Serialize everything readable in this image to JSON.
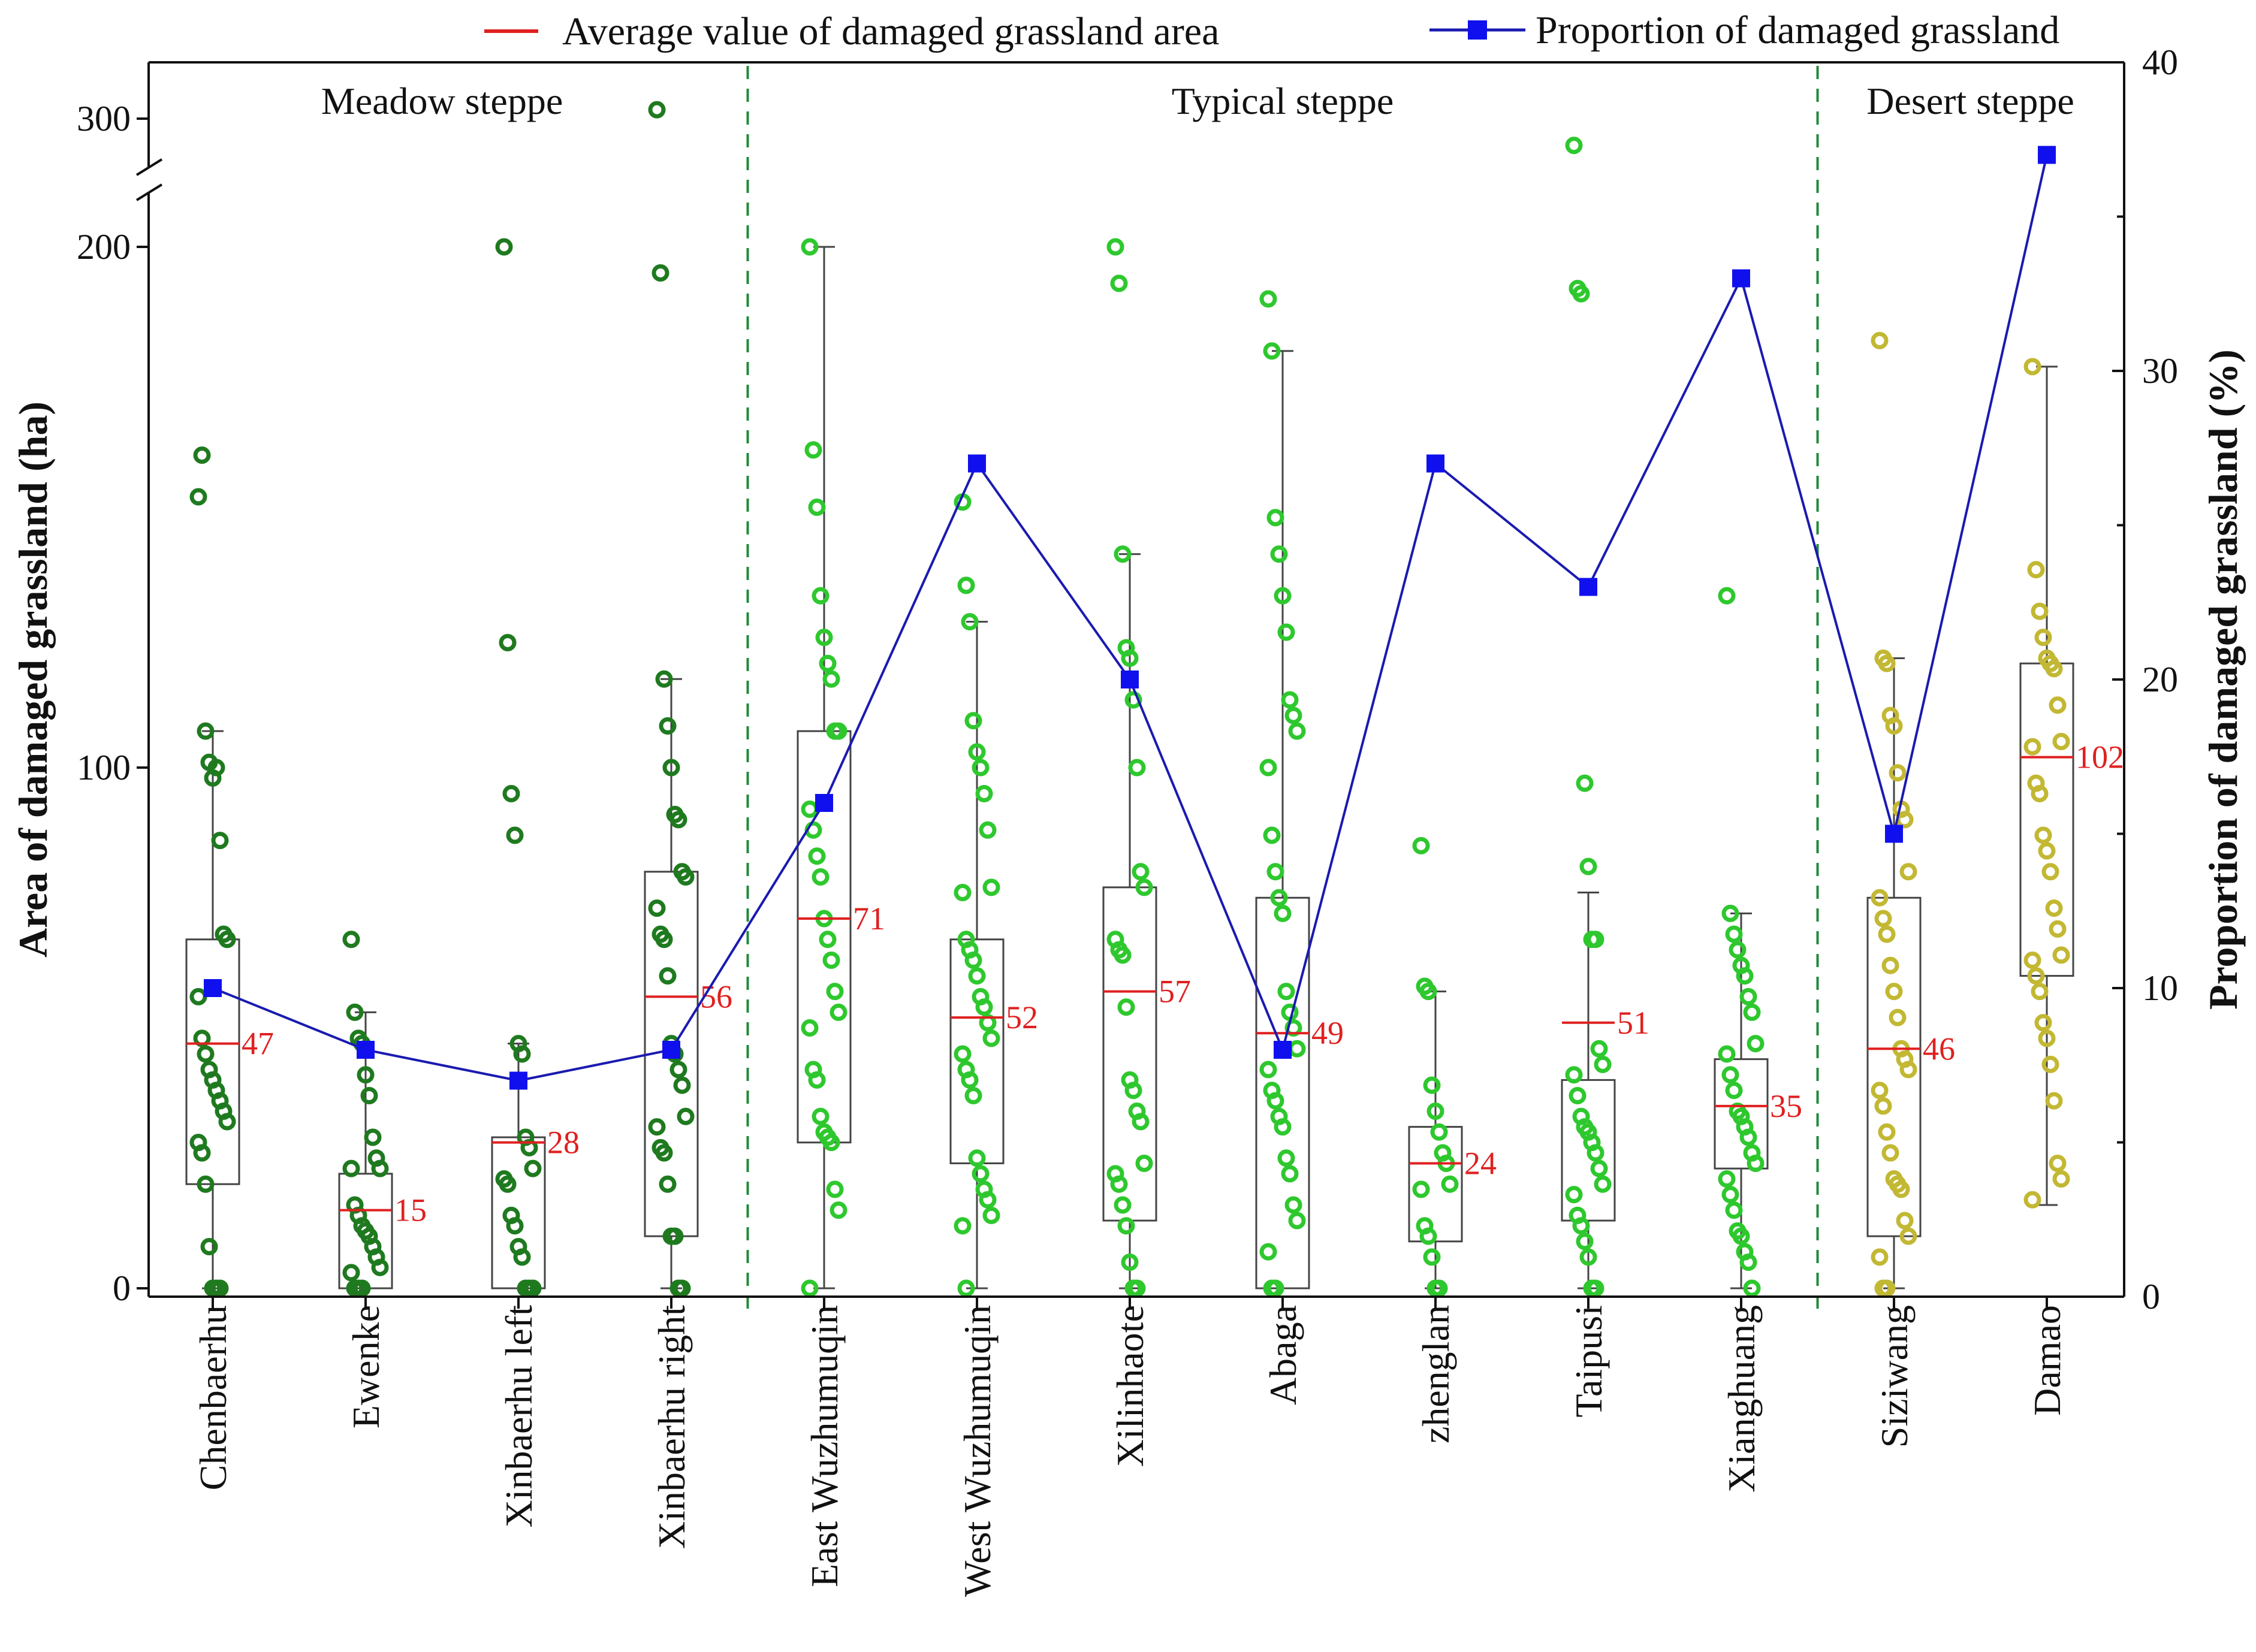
{
  "chart_data": {
    "type": "box-scatter-line",
    "legend": {
      "mean_label": "Average value of damaged grassland area",
      "proportion_label": "Proportion of damaged grassland",
      "placement": "top"
    },
    "regions": [
      {
        "label": "Meadow steppe",
        "first_category": 0,
        "last_category": 3
      },
      {
        "label": "Typical steppe",
        "first_category": 4,
        "last_category": 10
      },
      {
        "label": "Desert steppe",
        "first_category": 11,
        "last_category": 12
      }
    ],
    "y_left": {
      "label": "Area  of damaged grassland (ha)",
      "lower_range": [
        0,
        200
      ],
      "upper_range": [
        200,
        300
      ],
      "lower_ticks": [
        "0",
        "100",
        "200"
      ],
      "upper_ticks": [
        "300"
      ],
      "axis_break": true
    },
    "y_right": {
      "label": "Proportion of damaged grassland (%)",
      "range": [
        0,
        40
      ],
      "ticks": [
        "0",
        "10",
        "20",
        "30",
        "40"
      ]
    },
    "colors": {
      "meadow": "#1f7a1f",
      "typical": "#2ec82e",
      "desert": "#c2b833",
      "mean": "#e02020",
      "proportion": "#1a1ab0",
      "proportion_marker": "#1010ee",
      "divider": "#1f8a3a",
      "box": "#444444",
      "axis": "#111111"
    },
    "categories": [
      {
        "name": "Chenbaerhu",
        "group": "meadow",
        "mean": 47,
        "mean_label": "47",
        "proportion": 10,
        "box": {
          "q1": 20,
          "q3": 67,
          "whisker_low": 0,
          "whisker_high": 107
        },
        "points": [
          152,
          160,
          107,
          101,
          98,
          100,
          86,
          68,
          67,
          56,
          48,
          45,
          42,
          40,
          38,
          36,
          34,
          32,
          28,
          26,
          20,
          8,
          0,
          0,
          0
        ]
      },
      {
        "name": "Ewenke",
        "group": "meadow",
        "mean": 15,
        "mean_label": "15",
        "proportion": 8,
        "box": {
          "q1": 0,
          "q3": 22,
          "whisker_low": 0,
          "whisker_high": 53
        },
        "points": [
          67,
          53,
          48,
          47,
          41,
          37,
          29,
          25,
          23,
          23,
          16,
          14,
          12,
          11,
          10,
          8,
          6,
          4,
          3,
          0,
          0,
          0
        ]
      },
      {
        "name": "Xinbaerhu left",
        "group": "meadow",
        "mean": 28,
        "mean_label": "28",
        "proportion": 7,
        "box": {
          "q1": 0,
          "q3": 29,
          "whisker_low": 0,
          "whisker_high": 47
        },
        "points": [
          200,
          124,
          95,
          87,
          47,
          45,
          29,
          27,
          23,
          21,
          20,
          14,
          12,
          8,
          6,
          0,
          0,
          0
        ]
      },
      {
        "name": "Xinbaerhu right",
        "group": "meadow",
        "mean": 56,
        "mean_label": "56",
        "proportion": 8,
        "box": {
          "q1": 10,
          "q3": 80,
          "whisker_low": 0,
          "whisker_high": 117
        },
        "points": [
          312,
          195,
          117,
          108,
          100,
          91,
          90,
          80,
          79,
          73,
          68,
          67,
          60,
          47,
          45,
          42,
          39,
          33,
          31,
          27,
          26,
          20,
          10,
          10,
          0,
          0
        ]
      },
      {
        "name": "East Wuzhumuqin",
        "group": "typical",
        "mean": 71,
        "mean_label": "71",
        "proportion": 16,
        "box": {
          "q1": 28,
          "q3": 107,
          "whisker_low": 0,
          "whisker_high": 200
        },
        "points": [
          200,
          161,
          150,
          133,
          125,
          120,
          117,
          107,
          107,
          92,
          88,
          83,
          79,
          71,
          67,
          63,
          57,
          53,
          50,
          42,
          40,
          33,
          30,
          29,
          28,
          19,
          15,
          0
        ]
      },
      {
        "name": "West Wuzhumuqin",
        "group": "typical",
        "mean": 52,
        "mean_label": "52",
        "proportion": 27,
        "box": {
          "q1": 24,
          "q3": 67,
          "whisker_low": 0,
          "whisker_high": 128
        },
        "points": [
          151,
          135,
          128,
          109,
          103,
          100,
          95,
          88,
          77,
          76,
          67,
          65,
          63,
          60,
          56,
          54,
          51,
          48,
          45,
          42,
          40,
          37,
          25,
          22,
          19,
          17,
          14,
          12,
          0
        ]
      },
      {
        "name": "Xilinhaote",
        "group": "typical",
        "mean": 57,
        "mean_label": "57",
        "proportion": 20,
        "box": {
          "q1": 13,
          "q3": 77,
          "whisker_low": 0,
          "whisker_high": 141
        },
        "points": [
          200,
          193,
          141,
          123,
          121,
          113,
          100,
          80,
          77,
          67,
          65,
          64,
          54,
          40,
          38,
          34,
          32,
          24,
          22,
          20,
          16,
          12,
          5,
          0,
          0
        ]
      },
      {
        "name": "Abaga",
        "group": "typical",
        "mean": 49,
        "mean_label": "49",
        "proportion": 8,
        "box": {
          "q1": 0,
          "q3": 75,
          "whisker_low": 0,
          "whisker_high": 180
        },
        "points": [
          190,
          180,
          148,
          141,
          133,
          126,
          113,
          110,
          107,
          100,
          87,
          80,
          75,
          72,
          57,
          53,
          50,
          46,
          42,
          38,
          36,
          33,
          31,
          25,
          22,
          16,
          13,
          7,
          0,
          0
        ]
      },
      {
        "name": "zhenglan",
        "group": "typical",
        "mean": 24,
        "mean_label": "24",
        "proportion": 27,
        "box": {
          "q1": 9,
          "q3": 31,
          "whisker_low": 0,
          "whisker_high": 57
        },
        "points": [
          85,
          58,
          57,
          39,
          34,
          30,
          26,
          24,
          20,
          19,
          12,
          10,
          6,
          0,
          0
        ]
      },
      {
        "name": "Taipusi",
        "group": "typical",
        "mean": 51,
        "mean_label": "51",
        "proportion": 23,
        "box": {
          "q1": 13,
          "q3": 40,
          "whisker_low": 0,
          "whisker_high": 76
        },
        "points": [
          264,
          192,
          191,
          97,
          81,
          67,
          67,
          46,
          43,
          41,
          37,
          33,
          31,
          30,
          28,
          26,
          23,
          20,
          18,
          14,
          12,
          9,
          6,
          0,
          0
        ]
      },
      {
        "name": "Xianghuang",
        "group": "typical",
        "mean": 35,
        "mean_label": "35",
        "proportion": 33,
        "box": {
          "q1": 23,
          "q3": 44,
          "whisker_low": 0,
          "whisker_high": 72
        },
        "points": [
          133,
          72,
          68,
          65,
          62,
          60,
          56,
          53,
          47,
          45,
          41,
          38,
          34,
          33,
          31,
          29,
          26,
          24,
          21,
          18,
          15,
          11,
          10,
          7,
          5,
          0
        ]
      },
      {
        "name": "Siziwang",
        "group": "desert",
        "mean": 46,
        "mean_label": "46",
        "proportion": 15,
        "box": {
          "q1": 10,
          "q3": 75,
          "whisker_low": 0,
          "whisker_high": 121
        },
        "points": [
          182,
          121,
          120,
          110,
          108,
          99,
          92,
          90,
          80,
          75,
          71,
          68,
          62,
          57,
          52,
          46,
          44,
          42,
          38,
          35,
          30,
          26,
          21,
          20,
          19,
          13,
          10,
          6,
          0,
          0
        ]
      },
      {
        "name": "Damao",
        "group": "desert",
        "mean": 102,
        "mean_label": "102",
        "proportion": 37,
        "box": {
          "q1": 60,
          "q3": 120,
          "whisker_low": 16,
          "whisker_high": 177
        },
        "points": [
          177,
          138,
          130,
          125,
          121,
          120,
          119,
          112,
          105,
          104,
          97,
          95,
          87,
          84,
          80,
          73,
          69,
          64,
          63,
          60,
          57,
          51,
          48,
          43,
          36,
          24,
          21,
          17
        ]
      }
    ]
  }
}
